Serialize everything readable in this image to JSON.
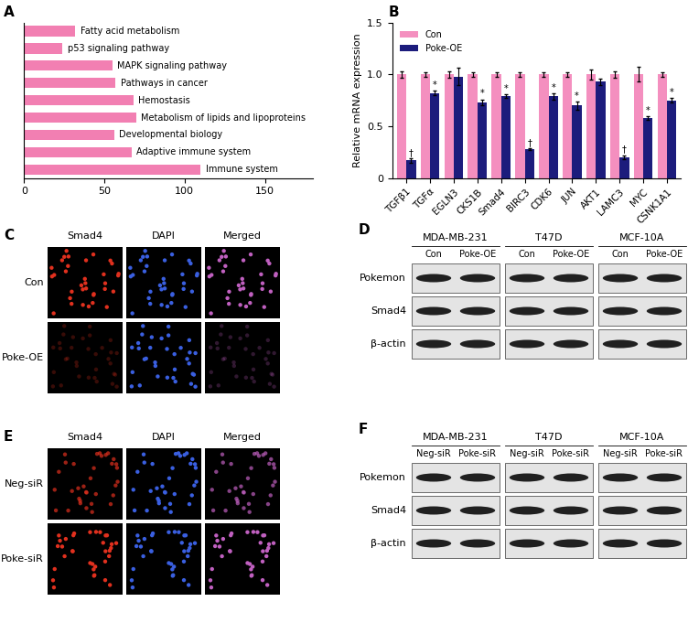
{
  "chart_data": [
    {
      "type": "bar",
      "title": "A",
      "orientation": "horizontal",
      "categories": [
        "Fatty acid metabolism",
        "p53 signaling pathway",
        "MAPK signaling pathway",
        "Pathways in cancer",
        "Hemostasis",
        "Metabolism of lipids and lipoproteins",
        "Developmental biology",
        "Adaptive immune system",
        "Immune system"
      ],
      "values": [
        32,
        24,
        55,
        57,
        68,
        70,
        56,
        67,
        110
      ],
      "color": "#f27fb2",
      "xlim": [
        0,
        180
      ],
      "xticks": [
        0,
        50,
        100,
        150
      ],
      "tick_labels": "x"
    },
    {
      "type": "bar",
      "title": "B",
      "categories": [
        "TGFβ1",
        "TGFα",
        "EGLN3",
        "CKS1B",
        "Smad4",
        "BIRC3",
        "CDK6",
        "JUN",
        "AKT1",
        "LAMC3",
        "MYC",
        "CSNK1A1"
      ],
      "series": [
        {
          "name": "Con",
          "color": "#f48fbf",
          "values": [
            1.0,
            1.0,
            1.0,
            1.0,
            1.0,
            1.0,
            1.0,
            1.0,
            1.0,
            1.0,
            1.0,
            1.0
          ],
          "errors": [
            0.03,
            0.02,
            0.03,
            0.02,
            0.02,
            0.02,
            0.02,
            0.02,
            0.05,
            0.03,
            0.07,
            0.02
          ]
        },
        {
          "name": "Poke-OE",
          "color": "#1c1c7c",
          "values": [
            0.17,
            0.82,
            0.98,
            0.73,
            0.79,
            0.28,
            0.79,
            0.7,
            0.93,
            0.2,
            0.58,
            0.75
          ],
          "errors": [
            0.02,
            0.02,
            0.08,
            0.03,
            0.02,
            0.01,
            0.03,
            0.04,
            0.03,
            0.02,
            0.02,
            0.02
          ],
          "annotations": [
            "†",
            "*",
            null,
            "*",
            "*",
            "†",
            "*",
            "*",
            null,
            "†",
            "*",
            "*"
          ]
        }
      ],
      "ylabel": "Relative mRNA expression",
      "ylim": [
        0,
        1.5
      ],
      "yticks": [
        0,
        0.5,
        {
          "value": 1,
          "label": "1.0"
        },
        1.5
      ],
      "legend": "upper left"
    }
  ],
  "image_panels": [
    {
      "title": "C",
      "columns": [
        "Smad4",
        "DAPI",
        "Merged"
      ],
      "rows": [
        "Con",
        "Poke-OE"
      ]
    },
    {
      "title": "E",
      "columns": [
        "Smad4",
        "DAPI",
        "Merged"
      ],
      "rows": [
        "Neg-siR",
        "Poke-siR"
      ]
    }
  ],
  "blot_panels": [
    {
      "title": "D",
      "cell_lines": [
        "MDA-MB-231",
        "T47D",
        "MCF-10A"
      ],
      "conditions": [
        "Con",
        "Poke-OE"
      ],
      "rows": [
        "Pokemon",
        "Smad4",
        "β-actin"
      ]
    },
    {
      "title": "F",
      "cell_lines": [
        "MDA-MB-231",
        "T47D",
        "MCF-10A"
      ],
      "conditions": [
        "Neg-siR",
        "Poke-siR"
      ],
      "rows": [
        "Pokemon",
        "Smad4",
        "β-actin"
      ]
    }
  ]
}
